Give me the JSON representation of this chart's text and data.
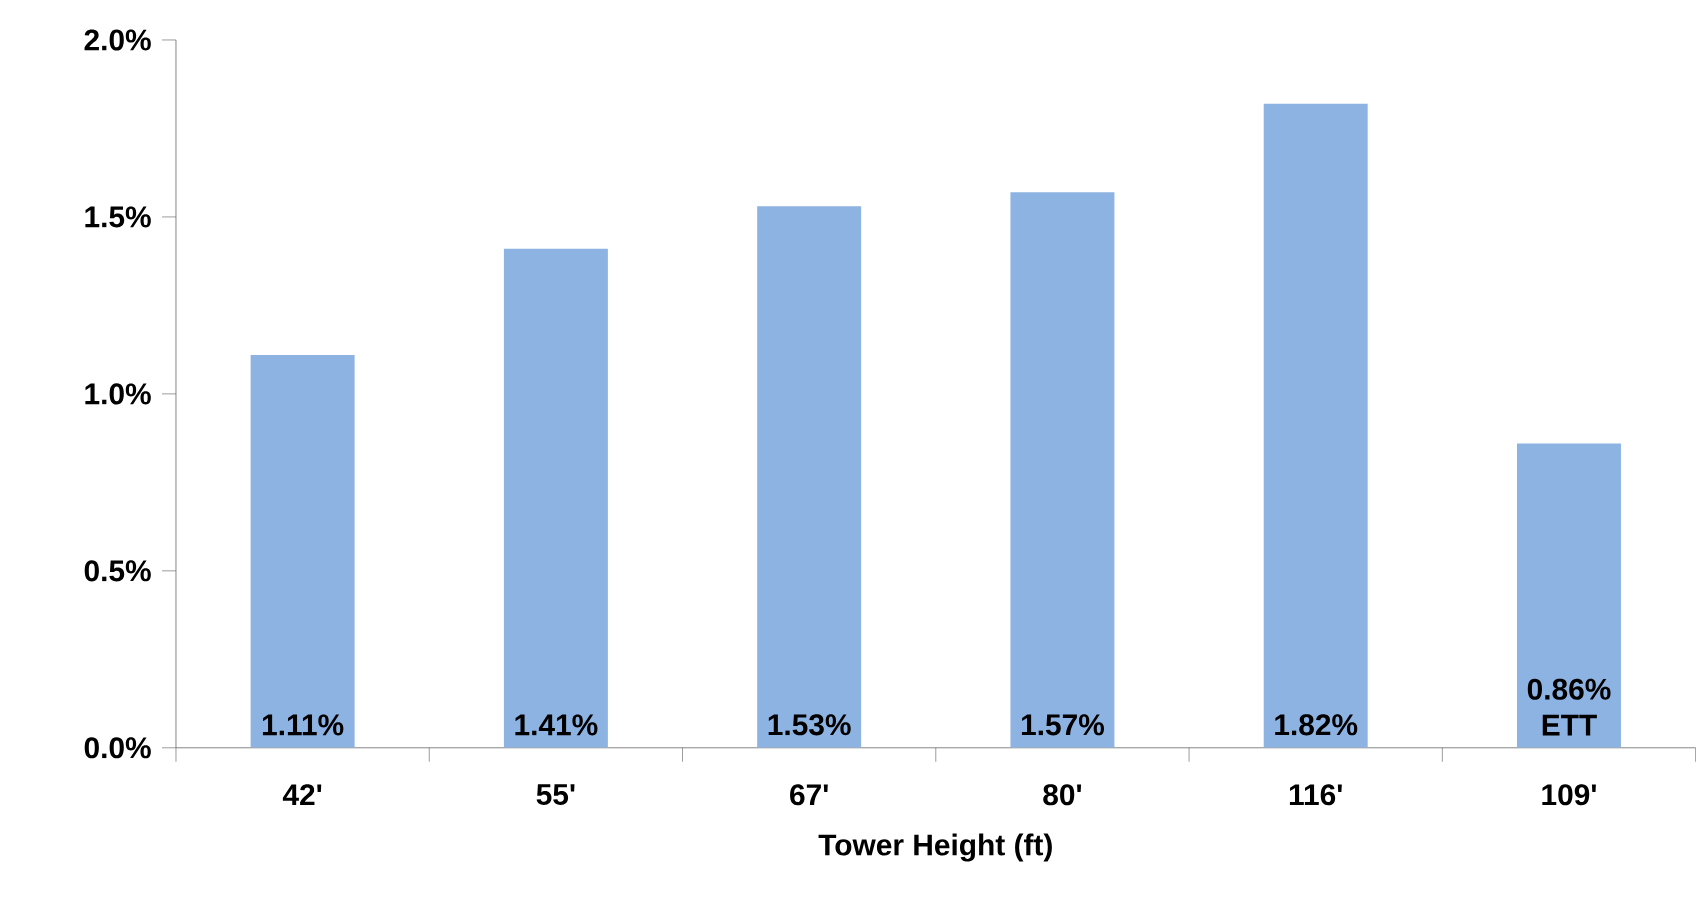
{
  "chart_data": {
    "type": "bar",
    "xlabel": "Tower Height (ft)",
    "categories": [
      "42'",
      "55'",
      "67'",
      "80'",
      "116'",
      "109'"
    ],
    "values": [
      1.11,
      1.41,
      1.53,
      1.57,
      1.82,
      0.86
    ],
    "value_labels": [
      "1.11%",
      "1.41%",
      "1.53%",
      "1.57%",
      "1.82%",
      "0.86%"
    ],
    "color": "#8db3e2",
    "annotations": [
      "ETT"
    ],
    "ylim": [
      0,
      2.0
    ],
    "yticks": [
      {
        "value": 0,
        "label": "0.0%"
      },
      {
        "value": 0.5,
        "label": "0.5%"
      },
      {
        "value": 1.0,
        "label": "1.0%"
      },
      {
        "value": 1.5,
        "label": "1.5%"
      },
      {
        "value": 2.0,
        "label": "2.0%"
      }
    ],
    "grid": false
  }
}
